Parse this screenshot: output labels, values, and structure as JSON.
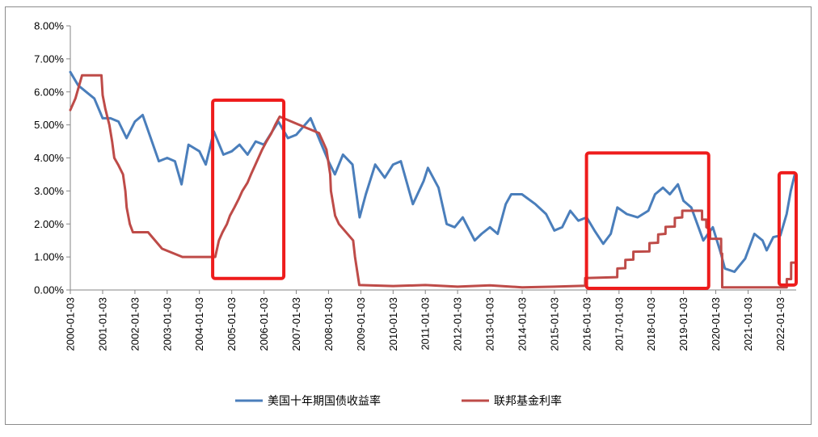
{
  "chart_data": {
    "type": "line",
    "x_range": [
      "2000-01-03",
      "2022-07-01"
    ],
    "ylim": [
      0,
      8
    ],
    "y_ticks": [
      "0.00%",
      "1.00%",
      "2.00%",
      "3.00%",
      "4.00%",
      "5.00%",
      "6.00%",
      "7.00%",
      "8.00%"
    ],
    "x_ticks": [
      "2000-01-03",
      "2001-01-03",
      "2002-01-03",
      "2003-01-03",
      "2004-01-03",
      "2005-01-03",
      "2006-01-03",
      "2007-01-03",
      "2008-01-03",
      "2009-01-03",
      "2010-01-03",
      "2011-01-03",
      "2012-01-03",
      "2013-01-03",
      "2014-01-03",
      "2015-01-03",
      "2016-01-03",
      "2017-01-03",
      "2018-01-03",
      "2019-01-03",
      "2020-01-03",
      "2021-01-03",
      "2022-01-03"
    ],
    "grid": false,
    "legend_position": "bottom",
    "series": [
      {
        "name": "美国十年期国债收益率",
        "color": "#4a7ebb",
        "points": [
          [
            "2000-01-03",
            6.6
          ],
          [
            "2000-04-01",
            6.2
          ],
          [
            "2000-07-01",
            6.0
          ],
          [
            "2000-10-01",
            5.8
          ],
          [
            "2001-01-03",
            5.2
          ],
          [
            "2001-04-01",
            5.2
          ],
          [
            "2001-07-01",
            5.1
          ],
          [
            "2001-10-01",
            4.6
          ],
          [
            "2002-01-03",
            5.1
          ],
          [
            "2002-04-01",
            5.3
          ],
          [
            "2002-07-01",
            4.6
          ],
          [
            "2002-10-01",
            3.9
          ],
          [
            "2003-01-03",
            4.0
          ],
          [
            "2003-04-01",
            3.9
          ],
          [
            "2003-06-15",
            3.2
          ],
          [
            "2003-09-01",
            4.4
          ],
          [
            "2004-01-03",
            4.2
          ],
          [
            "2004-03-15",
            3.8
          ],
          [
            "2004-06-15",
            4.8
          ],
          [
            "2004-10-01",
            4.1
          ],
          [
            "2005-01-03",
            4.2
          ],
          [
            "2005-04-01",
            4.4
          ],
          [
            "2005-07-01",
            4.1
          ],
          [
            "2005-10-01",
            4.5
          ],
          [
            "2006-01-03",
            4.4
          ],
          [
            "2006-06-15",
            5.1
          ],
          [
            "2006-10-01",
            4.6
          ],
          [
            "2007-01-03",
            4.7
          ],
          [
            "2007-06-15",
            5.2
          ],
          [
            "2007-10-01",
            4.5
          ],
          [
            "2008-01-03",
            3.9
          ],
          [
            "2008-03-15",
            3.5
          ],
          [
            "2008-06-15",
            4.1
          ],
          [
            "2008-10-01",
            3.8
          ],
          [
            "2008-12-20",
            2.2
          ],
          [
            "2009-03-01",
            2.9
          ],
          [
            "2009-06-15",
            3.8
          ],
          [
            "2009-10-01",
            3.4
          ],
          [
            "2010-01-03",
            3.8
          ],
          [
            "2010-04-01",
            3.9
          ],
          [
            "2010-08-15",
            2.6
          ],
          [
            "2010-12-15",
            3.3
          ],
          [
            "2011-02-01",
            3.7
          ],
          [
            "2011-06-01",
            3.1
          ],
          [
            "2011-09-01",
            2.0
          ],
          [
            "2011-12-01",
            1.9
          ],
          [
            "2012-03-01",
            2.2
          ],
          [
            "2012-07-15",
            1.5
          ],
          [
            "2012-10-01",
            1.7
          ],
          [
            "2013-01-03",
            1.9
          ],
          [
            "2013-04-01",
            1.7
          ],
          [
            "2013-07-01",
            2.6
          ],
          [
            "2013-09-01",
            2.9
          ],
          [
            "2013-12-31",
            2.9
          ],
          [
            "2014-06-01",
            2.6
          ],
          [
            "2014-10-01",
            2.3
          ],
          [
            "2015-01-03",
            1.8
          ],
          [
            "2015-04-01",
            1.9
          ],
          [
            "2015-07-01",
            2.4
          ],
          [
            "2015-10-01",
            2.1
          ],
          [
            "2016-01-03",
            2.2
          ],
          [
            "2016-04-01",
            1.8
          ],
          [
            "2016-07-08",
            1.4
          ],
          [
            "2016-10-01",
            1.7
          ],
          [
            "2016-12-15",
            2.5
          ],
          [
            "2017-04-01",
            2.3
          ],
          [
            "2017-08-01",
            2.2
          ],
          [
            "2017-12-01",
            2.4
          ],
          [
            "2018-02-15",
            2.9
          ],
          [
            "2018-05-15",
            3.1
          ],
          [
            "2018-08-01",
            2.9
          ],
          [
            "2018-11-01",
            3.2
          ],
          [
            "2019-01-03",
            2.7
          ],
          [
            "2019-04-01",
            2.5
          ],
          [
            "2019-08-15",
            1.5
          ],
          [
            "2019-12-01",
            1.9
          ],
          [
            "2020-03-01",
            1.1
          ],
          [
            "2020-04-15",
            0.65
          ],
          [
            "2020-08-01",
            0.55
          ],
          [
            "2020-12-01",
            0.95
          ],
          [
            "2021-03-15",
            1.7
          ],
          [
            "2021-06-15",
            1.5
          ],
          [
            "2021-08-01",
            1.2
          ],
          [
            "2021-10-15",
            1.6
          ],
          [
            "2022-01-03",
            1.65
          ],
          [
            "2022-03-15",
            2.3
          ],
          [
            "2022-05-01",
            3.0
          ],
          [
            "2022-06-15",
            3.5
          ]
        ]
      },
      {
        "name": "联邦基金利率",
        "color": "#be4b48",
        "points": [
          [
            "2000-01-03",
            5.45
          ],
          [
            "2000-03-01",
            5.8
          ],
          [
            "2000-05-15",
            6.5
          ],
          [
            "2000-07-01",
            6.5
          ],
          [
            "2000-12-20",
            6.5
          ],
          [
            "2001-01-03",
            5.9
          ],
          [
            "2001-02-01",
            5.5
          ],
          [
            "2001-03-20",
            5.0
          ],
          [
            "2001-04-20",
            4.5
          ],
          [
            "2001-05-15",
            4.0
          ],
          [
            "2001-06-27",
            3.8
          ],
          [
            "2001-08-21",
            3.5
          ],
          [
            "2001-09-17",
            3.0
          ],
          [
            "2001-10-02",
            2.5
          ],
          [
            "2001-11-06",
            2.0
          ],
          [
            "2001-12-11",
            1.75
          ],
          [
            "2002-06-01",
            1.75
          ],
          [
            "2002-11-06",
            1.25
          ],
          [
            "2003-06-25",
            1.0
          ],
          [
            "2004-06-30",
            1.0
          ],
          [
            "2004-08-10",
            1.5
          ],
          [
            "2004-09-21",
            1.75
          ],
          [
            "2004-11-10",
            2.0
          ],
          [
            "2004-12-14",
            2.25
          ],
          [
            "2005-02-02",
            2.5
          ],
          [
            "2005-03-22",
            2.75
          ],
          [
            "2005-05-03",
            3.0
          ],
          [
            "2005-06-30",
            3.25
          ],
          [
            "2005-08-09",
            3.5
          ],
          [
            "2005-09-20",
            3.75
          ],
          [
            "2005-11-01",
            4.0
          ],
          [
            "2005-12-13",
            4.25
          ],
          [
            "2006-01-31",
            4.5
          ],
          [
            "2006-03-28",
            4.75
          ],
          [
            "2006-05-10",
            5.0
          ],
          [
            "2006-06-29",
            5.25
          ],
          [
            "2007-09-18",
            4.75
          ],
          [
            "2007-10-31",
            4.5
          ],
          [
            "2007-12-11",
            4.25
          ],
          [
            "2008-01-22",
            3.5
          ],
          [
            "2008-01-30",
            3.0
          ],
          [
            "2008-03-18",
            2.25
          ],
          [
            "2008-04-30",
            2.0
          ],
          [
            "2008-10-08",
            1.5
          ],
          [
            "2008-10-29",
            1.0
          ],
          [
            "2008-12-16",
            0.15
          ],
          [
            "2010-01-03",
            0.12
          ],
          [
            "2011-01-03",
            0.15
          ],
          [
            "2012-01-03",
            0.1
          ],
          [
            "2013-01-03",
            0.14
          ],
          [
            "2014-01-03",
            0.08
          ],
          [
            "2015-01-03",
            0.1
          ],
          [
            "2015-12-16",
            0.13
          ],
          [
            "2015-12-17",
            0.36
          ],
          [
            "2016-12-14",
            0.39
          ],
          [
            "2016-12-15",
            0.65
          ],
          [
            "2017-03-15",
            0.66
          ],
          [
            "2017-03-16",
            0.91
          ],
          [
            "2017-06-14",
            0.92
          ],
          [
            "2017-06-15",
            1.16
          ],
          [
            "2017-12-13",
            1.17
          ],
          [
            "2017-12-14",
            1.42
          ],
          [
            "2018-03-21",
            1.43
          ],
          [
            "2018-03-22",
            1.68
          ],
          [
            "2018-06-13",
            1.7
          ],
          [
            "2018-06-14",
            1.91
          ],
          [
            "2018-09-26",
            1.92
          ],
          [
            "2018-09-27",
            2.18
          ],
          [
            "2018-12-19",
            2.2
          ],
          [
            "2018-12-20",
            2.4
          ],
          [
            "2019-07-31",
            2.4
          ],
          [
            "2019-08-01",
            2.13
          ],
          [
            "2019-09-18",
            2.13
          ],
          [
            "2019-09-19",
            1.9
          ],
          [
            "2019-10-30",
            1.83
          ],
          [
            "2019-10-31",
            1.55
          ],
          [
            "2020-03-03",
            1.55
          ],
          [
            "2020-03-04",
            1.1
          ],
          [
            "2020-03-15",
            1.1
          ],
          [
            "2020-03-16",
            0.08
          ],
          [
            "2022-03-16",
            0.08
          ],
          [
            "2022-03-17",
            0.33
          ],
          [
            "2022-05-04",
            0.33
          ],
          [
            "2022-05-05",
            0.83
          ],
          [
            "2022-06-15",
            0.83
          ]
        ]
      }
    ]
  }
}
